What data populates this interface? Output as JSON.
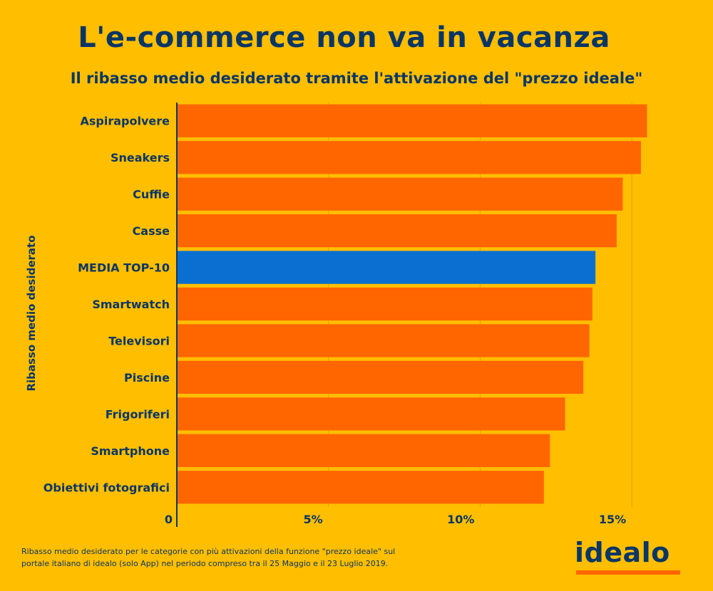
{
  "header": {
    "title": "L'e-commerce non va in vacanza",
    "subtitle": "Il ribasso medio desiderato tramite l'attivazione del \"prezzo ideale\""
  },
  "footnote": "Ribasso medio desiderato per le categorie con più attivazioni della funzione \"prezzo ideale\" sul portale italiano di idealo (solo App) nel periodo compreso tra il 25 Maggio e il 23 Luglio 2019.",
  "logo": {
    "text": "idealo"
  },
  "colors": {
    "background": "#FFBE00",
    "bar": "#FF6600",
    "highlight": "#0A6FD0",
    "text": "#0A3666"
  },
  "chart_data": {
    "type": "bar",
    "orientation": "horizontal",
    "title": "L'e-commerce non va in vacanza",
    "subtitle": "Il ribasso medio desiderato tramite l'attivazione del \"prezzo ideale\"",
    "ylabel": "Ribasso medio desiderato",
    "xlabel": "",
    "categories": [
      "Aspirapolvere",
      "Sneakers",
      "Cuffie",
      "Casse",
      "MEDIA TOP-10",
      "Smartwatch",
      "Televisori",
      "Piscine",
      "Frigoriferi",
      "Smartphone",
      "Obiettivi fotografici"
    ],
    "values": [
      15.5,
      15.3,
      14.7,
      14.5,
      13.8,
      13.7,
      13.6,
      13.4,
      12.8,
      12.3,
      12.1
    ],
    "highlight": "MEDIA TOP-10",
    "xlim": [
      0,
      16.5
    ],
    "xticks": [
      0,
      5,
      10,
      15
    ],
    "xtick_labels": [
      "0",
      "5%",
      "10%",
      "15%"
    ],
    "grid": "vertical"
  }
}
